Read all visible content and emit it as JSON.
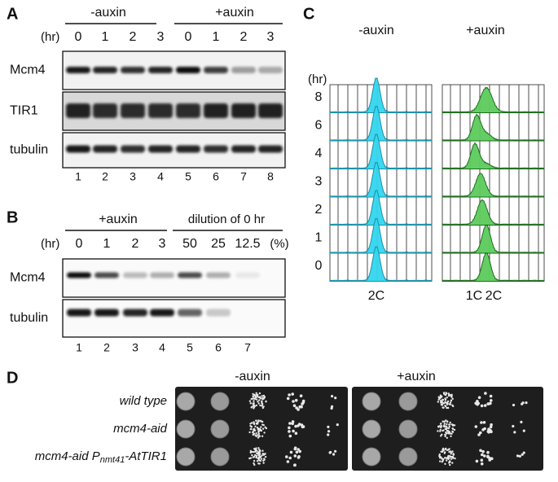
{
  "panel_a": {
    "label": "A",
    "conditions": [
      "-auxin",
      "+auxin"
    ],
    "time_unit": "(hr)",
    "times": [
      "0",
      "1",
      "2",
      "3",
      "0",
      "1",
      "2",
      "3"
    ],
    "rows": [
      "Mcm4",
      "TIR1",
      "tubulin"
    ],
    "lanes": [
      "1",
      "2",
      "3",
      "4",
      "5",
      "6",
      "7",
      "8"
    ]
  },
  "panel_b": {
    "label": "B",
    "conditions": [
      "+auxin",
      "dilution of 0 hr"
    ],
    "time_unit": "(hr)",
    "times": [
      "0",
      "1",
      "2",
      "3",
      "50",
      "25",
      "12.5"
    ],
    "percent_unit": "(%)",
    "rows": [
      "Mcm4",
      "tubulin"
    ],
    "lanes": [
      "1",
      "2",
      "3",
      "4",
      "5",
      "6",
      "7"
    ]
  },
  "panel_c": {
    "label": "C",
    "conditions": [
      "-auxin",
      "+auxin"
    ],
    "time_unit": "(hr)",
    "times": [
      "8",
      "6",
      "4",
      "3",
      "2",
      "1",
      "0"
    ],
    "left_marker": "2C",
    "right_markers": [
      "1C",
      "2C"
    ]
  },
  "panel_d": {
    "label": "D",
    "conditions": [
      "-auxin",
      "+auxin"
    ],
    "strains": [
      "wild type",
      "mcm4-aid",
      {
        "prefix": "mcm4-aid P",
        "subscript": "nmt41",
        "suffix": "-AtTIR1"
      }
    ]
  }
}
